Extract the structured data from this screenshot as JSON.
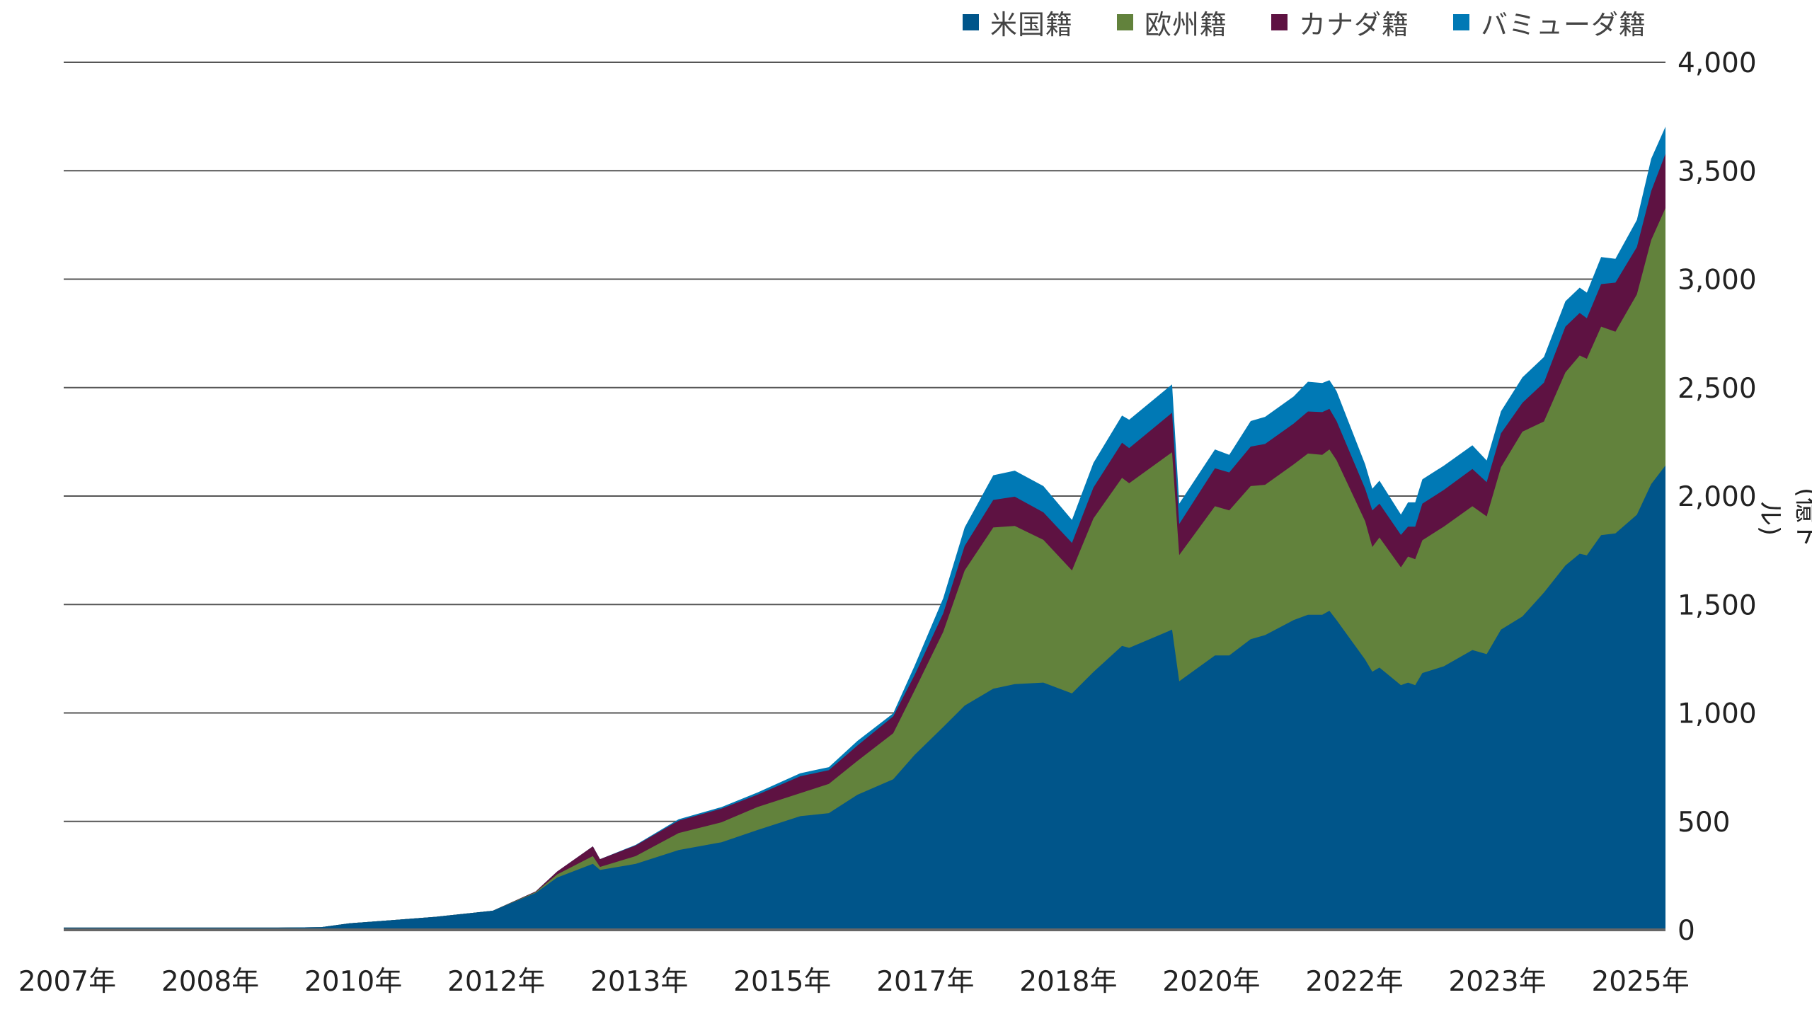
{
  "chart_data": {
    "type": "area",
    "stacked": true,
    "title": "",
    "xlabel": "",
    "ylabel": "(億ドル)",
    "ylim": [
      0,
      4000
    ],
    "y_ticks": [
      "0",
      "500",
      "1,000",
      "1,500",
      "2,000",
      "2,500",
      "3,000",
      "3,500",
      "4,000"
    ],
    "y_tick_values": [
      0,
      500,
      1000,
      1500,
      2000,
      2500,
      3000,
      3500,
      4000
    ],
    "x_range": [
      "2007-01",
      "2025-09"
    ],
    "x_tick_dates": [
      "2007-01",
      "2008-09",
      "2010-05",
      "2012-01",
      "2013-09",
      "2015-05",
      "2017-01",
      "2018-09",
      "2020-05",
      "2022-01",
      "2023-09",
      "2025-05"
    ],
    "x_tick_labels": [
      "2007年",
      "2008年",
      "2010年",
      "2012年",
      "2013年",
      "2015年",
      "2017年",
      "2018年",
      "2020年",
      "2022年",
      "2023年",
      "2025年"
    ],
    "grid": "horizontal",
    "legend_position": "top-right",
    "y_axis_position": "right",
    "x": [
      "2007-01",
      "2009-07",
      "2010-01",
      "2010-05",
      "2010-11",
      "2011-05",
      "2012-01",
      "2012-07",
      "2012-10",
      "2013-03",
      "2013-04",
      "2013-09",
      "2014-03",
      "2014-09",
      "2015-02",
      "2015-08",
      "2015-12",
      "2016-04",
      "2016-09",
      "2016-12",
      "2017-04",
      "2017-07",
      "2017-11",
      "2018-02",
      "2018-06",
      "2018-10",
      "2019-01",
      "2019-05",
      "2019-06",
      "2019-12",
      "2020-01",
      "2020-06",
      "2020-08",
      "2020-11",
      "2021-01",
      "2021-05",
      "2021-07",
      "2021-09",
      "2021-10",
      "2021-11",
      "2022-03",
      "2022-04",
      "2022-05",
      "2022-08",
      "2022-09",
      "2022-10",
      "2022-11",
      "2023-02",
      "2023-06",
      "2023-08",
      "2023-10",
      "2024-01",
      "2024-04",
      "2024-07",
      "2024-09",
      "2024-10",
      "2024-12",
      "2025-02",
      "2025-05",
      "2025-07",
      "2025-09"
    ],
    "series": [
      {
        "name": "米国籍",
        "color": "#00558a",
        "values": [
          10,
          10,
          12,
          30,
          45,
          60,
          88,
          170,
          241,
          304,
          276,
          304,
          368,
          404,
          460,
          524,
          538,
          623,
          694,
          807,
          935,
          1034,
          1112,
          1133,
          1140,
          1090,
          1189,
          1309,
          1300,
          1384,
          1146,
          1265,
          1265,
          1340,
          1359,
          1428,
          1453,
          1453,
          1471,
          1428,
          1246,
          1190,
          1209,
          1128,
          1140,
          1128,
          1184,
          1215,
          1290,
          1271,
          1384,
          1445,
          1555,
          1680,
          1734,
          1727,
          1820,
          1828,
          1914,
          2055,
          2141
        ]
      },
      {
        "name": "欧州籍",
        "color": "#62823c",
        "values": [
          0,
          0,
          0,
          0,
          0,
          0,
          0,
          4,
          14,
          36,
          14,
          36,
          78,
          92,
          106,
          106,
          135,
          156,
          212,
          297,
          439,
          623,
          743,
          729,
          658,
          567,
          708,
          775,
          759,
          818,
          582,
          688,
          669,
          706,
          693,
          718,
          743,
          737,
          744,
          737,
          638,
          575,
          600,
          543,
          581,
          581,
          612,
          644,
          663,
          635,
          749,
          852,
          789,
          890,
          914,
          906,
          961,
          930,
          1016,
          1125,
          1187
        ]
      },
      {
        "name": "カナダ籍",
        "color": "#5e1242",
        "values": [
          0,
          0,
          0,
          0,
          0,
          0,
          0,
          3,
          14,
          45,
          36,
          49,
          57,
          63,
          57,
          78,
          63,
          71,
          78,
          71,
          85,
          113,
          127,
          135,
          127,
          127,
          142,
          162,
          162,
          182,
          143,
          175,
          175,
          182,
          188,
          188,
          194,
          197,
          187,
          181,
          150,
          169,
          156,
          150,
          138,
          150,
          169,
          169,
          172,
          158,
          156,
          133,
          179,
          211,
          196,
          187,
          196,
          226,
          218,
          226,
          250
        ]
      },
      {
        "name": "バミューダ籍",
        "color": "#0079b5",
        "values": [
          0,
          0,
          0,
          0,
          0,
          0,
          0,
          0,
          0,
          0,
          0,
          3,
          7,
          7,
          10,
          14,
          14,
          21,
          14,
          43,
          70,
          85,
          114,
          120,
          121,
          106,
          114,
          125,
          131,
          131,
          94,
          87,
          81,
          118,
          125,
          125,
          137,
          134,
          132,
          138,
          112,
          100,
          106,
          94,
          112,
          112,
          112,
          112,
          109,
          100,
          102,
          117,
          118,
          117,
          117,
          118,
          125,
          110,
          125,
          149,
          125
        ]
      }
    ]
  }
}
